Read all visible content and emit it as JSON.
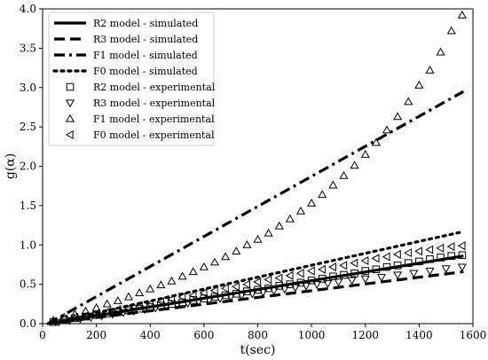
{
  "chart_data": {
    "type": "line",
    "title": "",
    "xlabel": "t(sec)",
    "ylabel": "g(α)",
    "xlim": [
      0,
      1600
    ],
    "ylim": [
      0,
      4.0
    ],
    "xticks": [
      "0",
      "200",
      "400",
      "600",
      "800",
      "1000",
      "1200",
      "1400",
      "1600"
    ],
    "yticks": [
      "0.0",
      "0.5",
      "1.0",
      "1.5",
      "2.0",
      "2.5",
      "3.0",
      "3.5",
      "4.0"
    ],
    "grid": false,
    "legend_position": "top-left",
    "series": [
      {
        "name": "R2 model - simulated",
        "kind": "line",
        "dash": "solid",
        "x": [
          20,
          1565
        ],
        "y": [
          0.0,
          0.86
        ]
      },
      {
        "name": "R3 model - simulated",
        "kind": "line",
        "dash": "dashed",
        "x": [
          20,
          1565
        ],
        "y": [
          0.0,
          0.66
        ]
      },
      {
        "name": "F1 model - simulated",
        "kind": "line",
        "dash": "dashdot",
        "x": [
          20,
          1565
        ],
        "y": [
          0.0,
          2.95
        ]
      },
      {
        "name": "F0 model - simulated",
        "kind": "line",
        "dash": "dotted",
        "x": [
          20,
          1565
        ],
        "y": [
          0.0,
          1.17
        ]
      },
      {
        "name": "R2 model - experimental",
        "kind": "marker",
        "marker": "square",
        "x": [
          40,
          80,
          120,
          160,
          200,
          240,
          280,
          320,
          360,
          400,
          440,
          480,
          520,
          560,
          600,
          640,
          680,
          720,
          760,
          800,
          840,
          880,
          920,
          960,
          1000,
          1040,
          1080,
          1120,
          1160,
          1200,
          1240,
          1280,
          1320,
          1360,
          1400,
          1440,
          1480,
          1520,
          1560
        ],
        "y": [
          0.02,
          0.05,
          0.07,
          0.09,
          0.11,
          0.13,
          0.15,
          0.17,
          0.19,
          0.21,
          0.23,
          0.25,
          0.27,
          0.3,
          0.32,
          0.34,
          0.36,
          0.38,
          0.41,
          0.43,
          0.45,
          0.48,
          0.5,
          0.52,
          0.55,
          0.57,
          0.6,
          0.62,
          0.64,
          0.67,
          0.69,
          0.72,
          0.74,
          0.77,
          0.79,
          0.82,
          0.84,
          0.86,
          0.87
        ]
      },
      {
        "name": "R3 model - experimental",
        "kind": "marker",
        "marker": "triangle-down",
        "x": [
          60,
          100,
          140,
          180,
          220,
          260,
          300,
          340,
          380,
          420,
          460,
          500,
          540,
          580,
          620,
          660,
          700,
          740,
          780,
          820,
          860,
          900,
          940,
          980,
          1020,
          1060,
          1100,
          1150,
          1200,
          1260,
          1320,
          1380,
          1440,
          1500,
          1560
        ],
        "y": [
          0.02,
          0.04,
          0.06,
          0.08,
          0.1,
          0.12,
          0.14,
          0.16,
          0.18,
          0.2,
          0.22,
          0.24,
          0.26,
          0.28,
          0.3,
          0.32,
          0.34,
          0.36,
          0.38,
          0.4,
          0.42,
          0.44,
          0.46,
          0.48,
          0.5,
          0.51,
          0.53,
          0.55,
          0.57,
          0.59,
          0.62,
          0.64,
          0.67,
          0.7,
          0.72
        ]
      },
      {
        "name": "F1 model - experimental",
        "kind": "marker",
        "marker": "triangle-up",
        "x": [
          40,
          80,
          120,
          160,
          200,
          240,
          280,
          320,
          360,
          400,
          440,
          480,
          520,
          560,
          600,
          640,
          680,
          720,
          760,
          800,
          840,
          880,
          920,
          960,
          1000,
          1040,
          1080,
          1120,
          1160,
          1200,
          1240,
          1280,
          1320,
          1360,
          1400,
          1440,
          1480,
          1520,
          1560
        ],
        "y": [
          0.04,
          0.08,
          0.12,
          0.16,
          0.2,
          0.25,
          0.29,
          0.34,
          0.39,
          0.44,
          0.49,
          0.54,
          0.6,
          0.66,
          0.72,
          0.78,
          0.85,
          0.92,
          1.0,
          1.07,
          1.15,
          1.24,
          1.33,
          1.43,
          1.53,
          1.64,
          1.76,
          1.88,
          2.01,
          2.15,
          2.3,
          2.46,
          2.63,
          2.82,
          3.03,
          3.22,
          3.45,
          3.72,
          3.92
        ]
      },
      {
        "name": "F0 model - experimental",
        "kind": "marker",
        "marker": "triangle-left",
        "x": [
          40,
          80,
          120,
          160,
          200,
          240,
          280,
          320,
          360,
          400,
          440,
          480,
          520,
          560,
          600,
          640,
          680,
          720,
          760,
          800,
          840,
          880,
          920,
          960,
          1000,
          1040,
          1080,
          1120,
          1160,
          1200,
          1240,
          1280,
          1320,
          1360,
          1400,
          1440,
          1480,
          1520,
          1560
        ],
        "y": [
          0.03,
          0.06,
          0.08,
          0.1,
          0.13,
          0.15,
          0.18,
          0.2,
          0.23,
          0.25,
          0.28,
          0.31,
          0.34,
          0.36,
          0.39,
          0.42,
          0.45,
          0.47,
          0.5,
          0.53,
          0.56,
          0.58,
          0.61,
          0.64,
          0.67,
          0.69,
          0.72,
          0.74,
          0.77,
          0.8,
          0.83,
          0.85,
          0.88,
          0.9,
          0.92,
          0.94,
          0.96,
          0.98,
          0.99
        ]
      }
    ]
  }
}
